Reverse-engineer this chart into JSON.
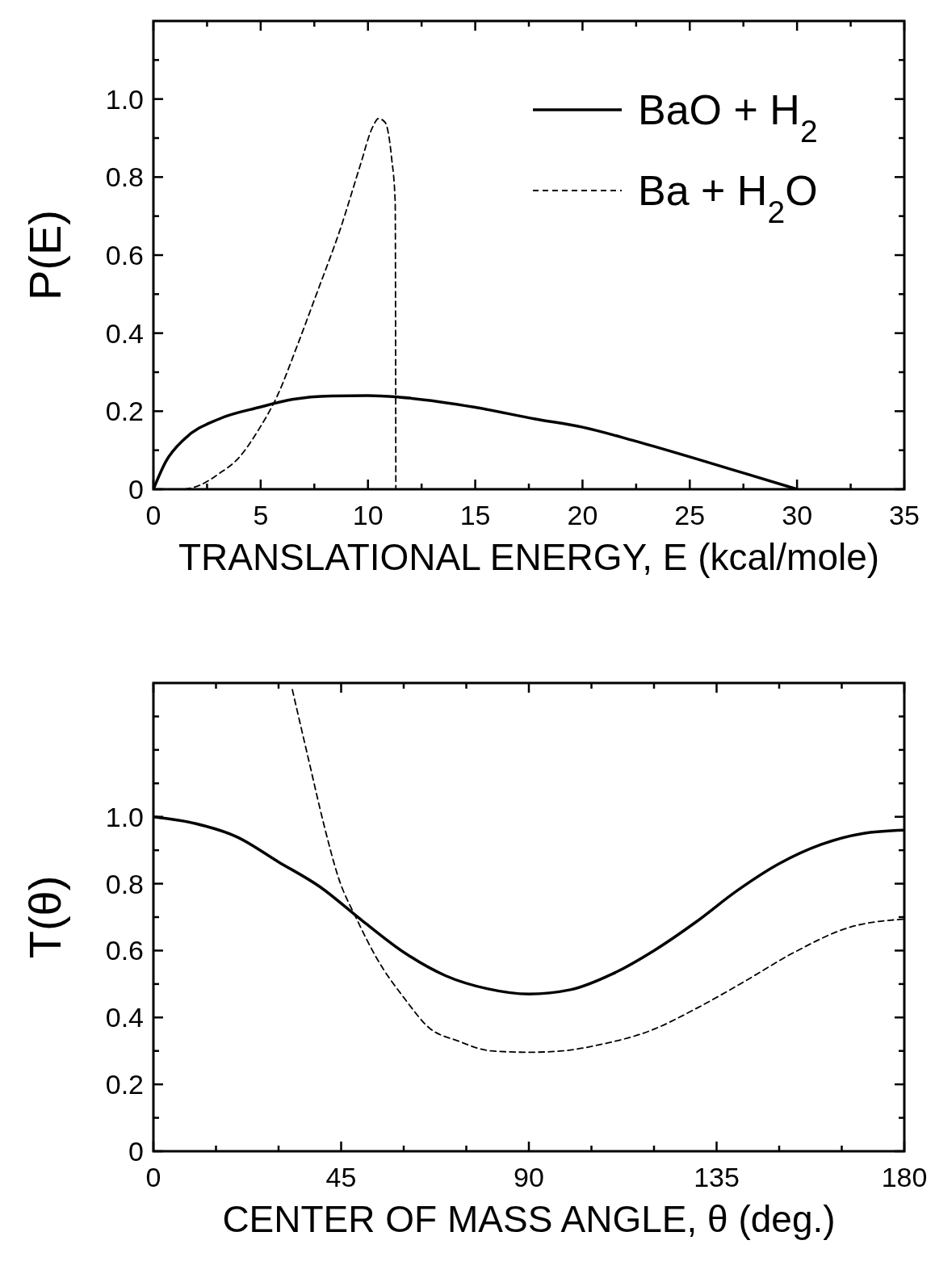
{
  "chart_data": [
    {
      "type": "line",
      "xlabel": "TRANSLATIONAL ENERGY, E (kcal/mole)",
      "ylabel": "P(E)",
      "xlim": [
        0,
        35
      ],
      "ylim": [
        0,
        1.2
      ],
      "xticks": [
        0,
        {
          "value": 2.5,
          "label": null
        },
        5,
        {
          "value": 7.5,
          "label": null
        },
        10,
        {
          "value": 12.5,
          "label": null
        },
        15,
        {
          "value": 17.5,
          "label": null
        },
        20,
        {
          "value": 22.5,
          "label": null
        },
        25,
        {
          "value": 27.5,
          "label": null
        },
        30,
        {
          "value": 32.5,
          "label": null
        },
        35
      ],
      "yticks": [
        0,
        {
          "value": 0.1,
          "label": null
        },
        0.2,
        {
          "value": 0.3,
          "label": null
        },
        0.4,
        {
          "value": 0.5,
          "label": null
        },
        0.6,
        {
          "value": 0.7,
          "label": null
        },
        0.8,
        {
          "value": 0.9,
          "label": null
        },
        {
          "value": 1,
          "label": "1.0"
        },
        {
          "value": 1.1,
          "label": null
        }
      ],
      "legend": "top right",
      "grid": false,
      "series": [
        {
          "name": "BaO + H$_{2}$",
          "color": "#000000",
          "line_style": "solid",
          "x": [
            0,
            0.57,
            1.47,
            3.06,
            4.94,
            6.46,
            8.28,
            10,
            11.45,
            15,
            17.8,
            20,
            22.3,
            25,
            27.6,
            30
          ],
          "values": [
            0,
            0.07,
            0.13,
            0.18,
            0.21,
            0.23,
            0.239,
            0.24,
            0.236,
            0.21,
            0.18,
            0.159,
            0.126,
            0.083,
            0.04,
            0
          ]
        },
        {
          "name": "Ba + H$_{2}$O",
          "color": "#000000",
          "line_style": "dashed",
          "x": [
            1.47,
            2.15,
            3.06,
            3.97,
            4.94,
            5.78,
            6.69,
            7.6,
            8.73,
            9.64,
            10.2,
            10.5,
            10.8,
            11.1,
            11.27,
            11.3
          ],
          "values": [
            0,
            0.01,
            0.04,
            0.08,
            0.156,
            0.24,
            0.366,
            0.5,
            0.67,
            0.83,
            0.926,
            0.95,
            0.94,
            0.85,
            0.735,
            0
          ]
        }
      ]
    },
    {
      "type": "line",
      "xlabel": "CENTER OF MASS ANGLE, θ (deg.)",
      "ylabel": "T(θ)",
      "xlim": [
        0,
        180
      ],
      "ylim": [
        0,
        1.4
      ],
      "xticks": [
        0,
        {
          "value": 15,
          "label": null
        },
        {
          "value": 30,
          "label": null
        },
        45,
        {
          "value": 60,
          "label": null
        },
        {
          "value": 75,
          "label": null
        },
        90,
        {
          "value": 105,
          "label": null
        },
        {
          "value": 120,
          "label": null
        },
        135,
        {
          "value": 150,
          "label": null
        },
        {
          "value": 165,
          "label": null
        },
        180
      ],
      "yticks": [
        0,
        {
          "value": 0.1,
          "label": null
        },
        0.2,
        {
          "value": 0.3,
          "label": null
        },
        0.4,
        {
          "value": 0.5,
          "label": null
        },
        0.6,
        {
          "value": 0.7,
          "label": null
        },
        0.8,
        {
          "value": 0.9,
          "label": null
        },
        {
          "value": 1,
          "label": "1.0"
        },
        {
          "value": 1.1,
          "label": null
        },
        {
          "value": 1.2,
          "label": null
        },
        {
          "value": 1.3,
          "label": null
        }
      ],
      "legend": false,
      "grid": false,
      "series": [
        {
          "color": "#000000",
          "line_style": "solid",
          "x": [
            0,
            10,
            20,
            30,
            40,
            50,
            60,
            70,
            80,
            90,
            100,
            110,
            120,
            130,
            140,
            150,
            160,
            170,
            180
          ],
          "values": [
            1.0,
            0.98,
            0.94,
            0.865,
            0.79,
            0.69,
            0.595,
            0.525,
            0.486,
            0.47,
            0.483,
            0.53,
            0.6,
            0.685,
            0.78,
            0.86,
            0.917,
            0.95,
            0.96
          ]
        },
        {
          "color": "#000000",
          "line_style": "dashed",
          "x": [
            33.3,
            37.4,
            40.8,
            44.3,
            48.9,
            53.4,
            60.3,
            66,
            73,
            81,
            90,
            98,
            107.5,
            119,
            130.6,
            142,
            153.5,
            167,
            180
          ],
          "values": [
            1.38,
            1.16,
            0.98,
            0.82,
            0.69,
            0.58,
            0.455,
            0.37,
            0.33,
            0.3,
            0.296,
            0.3,
            0.32,
            0.36,
            0.43,
            0.51,
            0.594,
            0.67,
            0.694
          ]
        }
      ]
    }
  ]
}
